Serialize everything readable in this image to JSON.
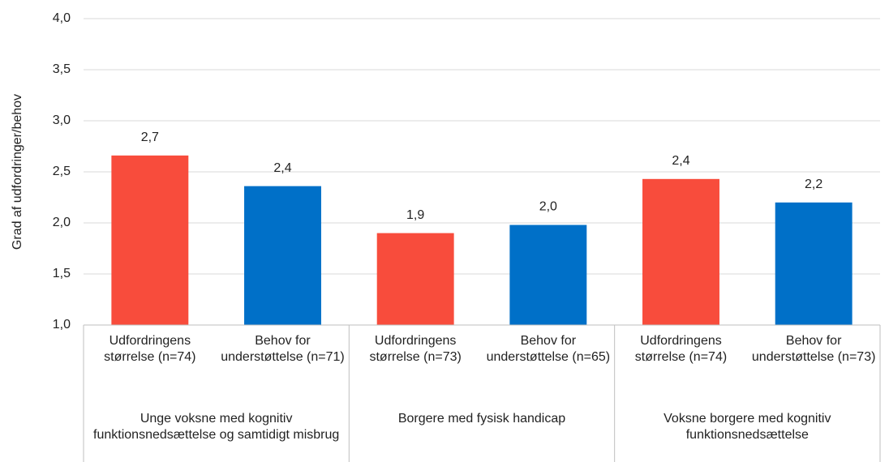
{
  "chart_data": {
    "type": "bar",
    "y_label": "Grad af udfordringer/behov",
    "categories": [
      "Udfordringens størrelse (n=74)",
      "Behov for understøttelse (n=71)",
      "Udfordringens størrelse (n=73)",
      "Behov for understøttelse (n=65)",
      "Udfordringens størrelse (n=74)",
      "Behov for understøttelse (n=73)"
    ],
    "groups": [
      {
        "name": "Unge voksne med kognitiv funktionsnedsættelse og samtidigt misbrug",
        "span": 2
      },
      {
        "name": "Borgere med fysisk handicap",
        "span": 2
      },
      {
        "name": "Voksne borgere med kognitiv funktionsnedsættelse",
        "span": 2
      }
    ],
    "values": [
      2.66,
      2.36,
      1.9,
      1.98,
      2.43,
      2.2
    ],
    "value_labels": [
      "2,7",
      "2,4",
      "1,9",
      "2,0",
      "2,4",
      "2,2"
    ],
    "colors": [
      "#f84c3c",
      "#0070c8",
      "#f84c3c",
      "#0070c8",
      "#f84c3c",
      "#0070c8"
    ],
    "ylim": [
      1,
      4
    ],
    "yticks": [
      {
        "value": 1,
        "label": "1,0"
      },
      {
        "value": 1.5,
        "label": "1,5"
      },
      {
        "value": 2,
        "label": "2,0"
      },
      {
        "value": 2.5,
        "label": "2,5"
      },
      {
        "value": 3,
        "label": "3,0"
      },
      {
        "value": 3.5,
        "label": "3,5"
      },
      {
        "value": 4,
        "label": "4,0"
      }
    ],
    "grid": true
  }
}
